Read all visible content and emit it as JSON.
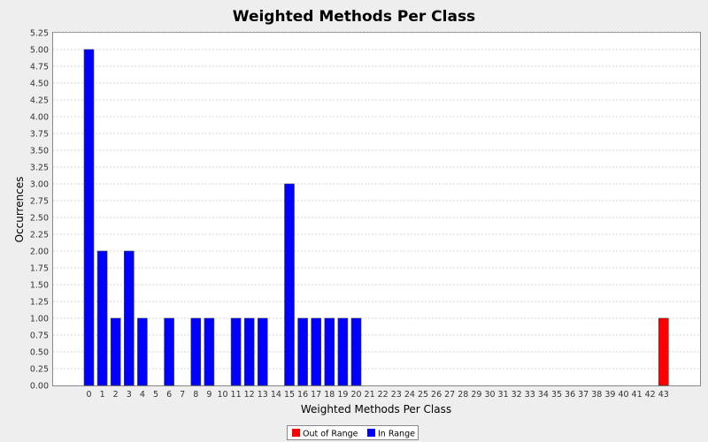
{
  "chart_data": {
    "type": "bar",
    "title": "Weighted Methods Per Class",
    "xlabel": "Weighted Methods Per Class",
    "ylabel": "Occurrences",
    "categories": [
      "0",
      "1",
      "2",
      "3",
      "4",
      "5",
      "6",
      "7",
      "8",
      "9",
      "10",
      "11",
      "12",
      "13",
      "14",
      "15",
      "16",
      "17",
      "18",
      "19",
      "20",
      "21",
      "22",
      "23",
      "24",
      "25",
      "26",
      "27",
      "28",
      "29",
      "30",
      "31",
      "32",
      "33",
      "34",
      "35",
      "36",
      "37",
      "38",
      "39",
      "40",
      "41",
      "42",
      "43"
    ],
    "series": [
      {
        "name": "Out of Range",
        "color": "#ff0000",
        "values": [
          0,
          0,
          0,
          0,
          0,
          0,
          0,
          0,
          0,
          0,
          0,
          0,
          0,
          0,
          0,
          0,
          0,
          0,
          0,
          0,
          0,
          0,
          0,
          0,
          0,
          0,
          0,
          0,
          0,
          0,
          0,
          0,
          0,
          0,
          0,
          0,
          0,
          0,
          0,
          0,
          0,
          0,
          0,
          1
        ]
      },
      {
        "name": "In Range",
        "color": "#0000ff",
        "values": [
          5,
          2,
          1,
          2,
          1,
          0,
          1,
          0,
          1,
          1,
          0,
          1,
          1,
          1,
          0,
          3,
          1,
          1,
          1,
          1,
          1,
          0,
          0,
          0,
          0,
          0,
          0,
          0,
          0,
          0,
          0,
          0,
          0,
          0,
          0,
          0,
          0,
          0,
          0,
          0,
          0,
          0,
          0,
          0
        ]
      }
    ],
    "ylim": [
      0,
      5.25
    ],
    "yticks": [
      "0.00",
      "0.25",
      "0.50",
      "0.75",
      "1.00",
      "1.25",
      "1.50",
      "1.75",
      "2.00",
      "2.25",
      "2.50",
      "2.75",
      "3.00",
      "3.25",
      "3.50",
      "3.75",
      "4.00",
      "4.25",
      "4.50",
      "4.75",
      "5.00",
      "5.25"
    ],
    "grid": true,
    "legend_position": "bottom-center"
  },
  "legend": {
    "out_of_range": "Out of Range",
    "in_range": "In Range"
  }
}
